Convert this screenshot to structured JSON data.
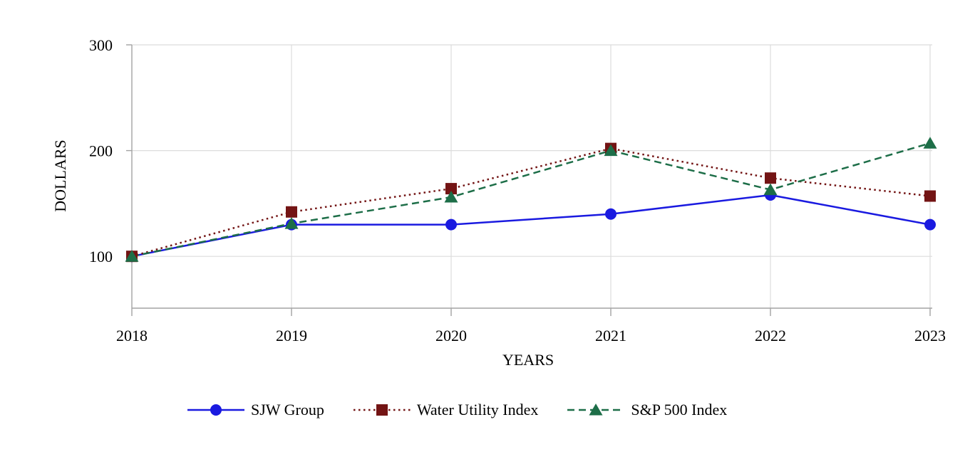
{
  "chart_data": {
    "type": "line",
    "x": [
      "2018",
      "2019",
      "2020",
      "2021",
      "2022",
      "2023"
    ],
    "series": [
      {
        "name": "SJW Group",
        "values": [
          100,
          130,
          130,
          140,
          158,
          130
        ],
        "color": "#1a1ae0",
        "marker": "circle",
        "line_style": "solid"
      },
      {
        "name": "Water Utility Index",
        "values": [
          100,
          142,
          164,
          202,
          174,
          157
        ],
        "color": "#731414",
        "marker": "square",
        "line_style": "dotted"
      },
      {
        "name": "S&P 500 Index",
        "values": [
          100,
          131,
          156,
          200,
          163,
          207
        ],
        "color": "#1d6e48",
        "marker": "triangle",
        "line_style": "dashed"
      }
    ],
    "title": "",
    "xlabel": "YEARS",
    "ylabel": "DOLLARS",
    "yticks": [
      100,
      200,
      300
    ],
    "ylim": [
      51,
      300
    ],
    "grid": true,
    "legend_position": "bottom"
  },
  "colors": {
    "grid": "#dcdcdc",
    "axis": "#a3a3a3",
    "text": "#000000",
    "background": "#ffffff"
  }
}
